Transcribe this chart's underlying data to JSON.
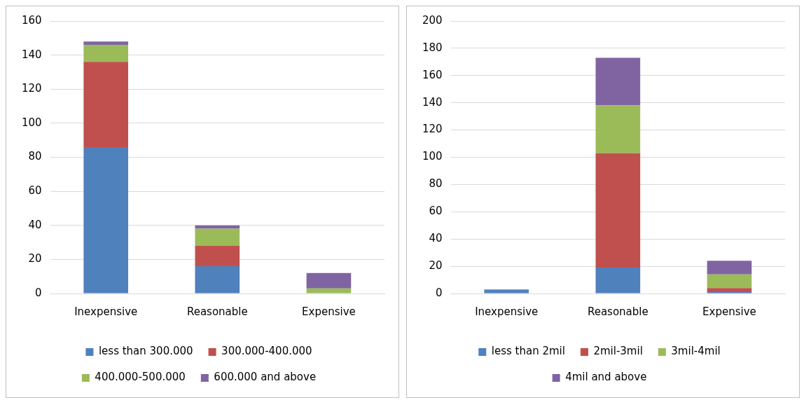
{
  "chart_data": [
    {
      "type": "bar",
      "stacked": true,
      "categories": [
        "Inexpensive",
        "Reasonable",
        "Expensive"
      ],
      "series": [
        {
          "name": "less than 300.000",
          "color": "#4f81bd",
          "values": [
            86,
            16,
            0
          ]
        },
        {
          "name": "300.000-400.000",
          "color": "#c0504d",
          "values": [
            50,
            12,
            0
          ]
        },
        {
          "name": "400.000-500.000",
          "color": "#9bbb59",
          "values": [
            10,
            10,
            3
          ]
        },
        {
          "name": "600.000 and above",
          "color": "#8064a2",
          "values": [
            2,
            2,
            9
          ]
        }
      ],
      "ylim": [
        0,
        160
      ],
      "yticks": [
        0,
        20,
        40,
        60,
        80,
        100,
        120,
        140,
        160
      ],
      "grid": "y",
      "legend": "bottom"
    },
    {
      "type": "bar",
      "stacked": true,
      "categories": [
        "Inexpensive",
        "Reasonable",
        "Expensive"
      ],
      "series": [
        {
          "name": "less than 2mil",
          "color": "#4f81bd",
          "values": [
            3,
            19,
            1
          ]
        },
        {
          "name": "2mil-3mil",
          "color": "#c0504d",
          "values": [
            0,
            84,
            3
          ]
        },
        {
          "name": "3mil-4mil",
          "color": "#9bbb59",
          "values": [
            0,
            35,
            10
          ]
        },
        {
          "name": "4mil and above",
          "color": "#8064a2",
          "values": [
            0,
            35,
            10
          ]
        }
      ],
      "ylim": [
        0,
        200
      ],
      "yticks": [
        0,
        20,
        40,
        60,
        80,
        100,
        120,
        140,
        160,
        180,
        200
      ],
      "grid": "y",
      "legend": "bottom"
    }
  ]
}
